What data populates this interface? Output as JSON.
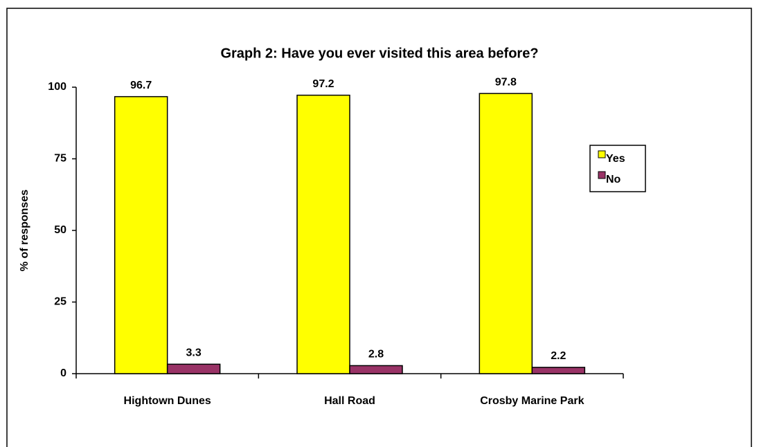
{
  "chart_data": {
    "type": "bar",
    "title": "Graph 2: Have you ever visited this area before?",
    "y_label": "% of responses",
    "categories": [
      "Hightown Dunes",
      "Hall Road",
      "Crosby Marine Park"
    ],
    "series": [
      {
        "name": "Yes",
        "color": "#ffff00",
        "values": [
          96.7,
          97.2,
          97.8
        ]
      },
      {
        "name": "No",
        "color": "#993366",
        "values": [
          3.3,
          2.8,
          2.2
        ]
      }
    ],
    "ylim": [
      0,
      100
    ],
    "yticks": [
      0,
      25,
      50,
      75,
      100
    ],
    "grid": false,
    "legend": "right"
  }
}
